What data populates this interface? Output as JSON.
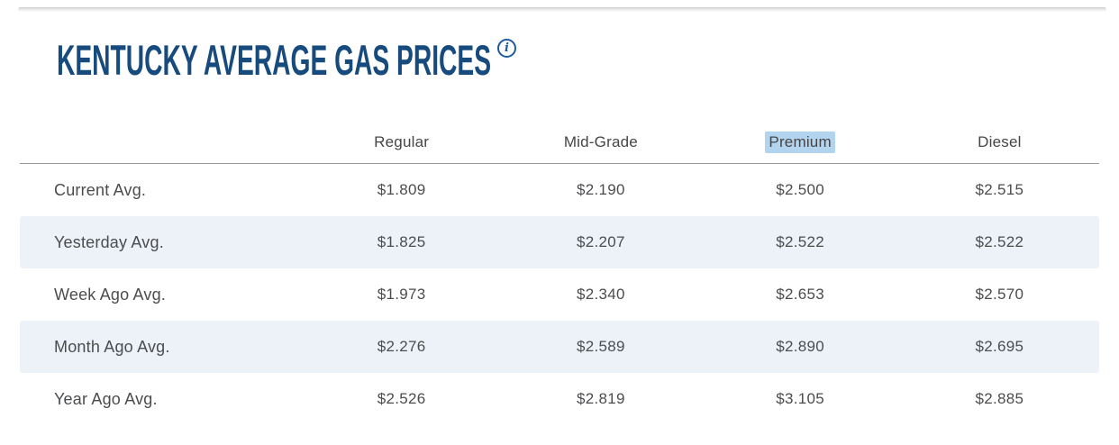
{
  "header": {
    "title": "KENTUCKY AVERAGE GAS PRICES",
    "info_icon": "i"
  },
  "table": {
    "columns": [
      "Regular",
      "Mid-Grade",
      "Premium",
      "Diesel"
    ],
    "highlighted_column": "Premium",
    "rows": [
      {
        "label": "Current Avg.",
        "values": [
          "$1.809",
          "$2.190",
          "$2.500",
          "$2.515"
        ]
      },
      {
        "label": "Yesterday Avg.",
        "values": [
          "$1.825",
          "$2.207",
          "$2.522",
          "$2.522"
        ]
      },
      {
        "label": "Week Ago Avg.",
        "values": [
          "$1.973",
          "$2.340",
          "$2.653",
          "$2.570"
        ]
      },
      {
        "label": "Month Ago Avg.",
        "values": [
          "$2.276",
          "$2.589",
          "$2.890",
          "$2.695"
        ]
      },
      {
        "label": "Year Ago Avg.",
        "values": [
          "$2.526",
          "$2.819",
          "$3.105",
          "$2.885"
        ]
      }
    ]
  },
  "colors": {
    "title_navy": "#174b7e",
    "info_icon_blue": "#1e5c9e",
    "row_stripe": "#edf2f8",
    "selection_highlight": "#b3d4ee",
    "header_rule": "#989898",
    "body_text": "#4b4c4e"
  }
}
